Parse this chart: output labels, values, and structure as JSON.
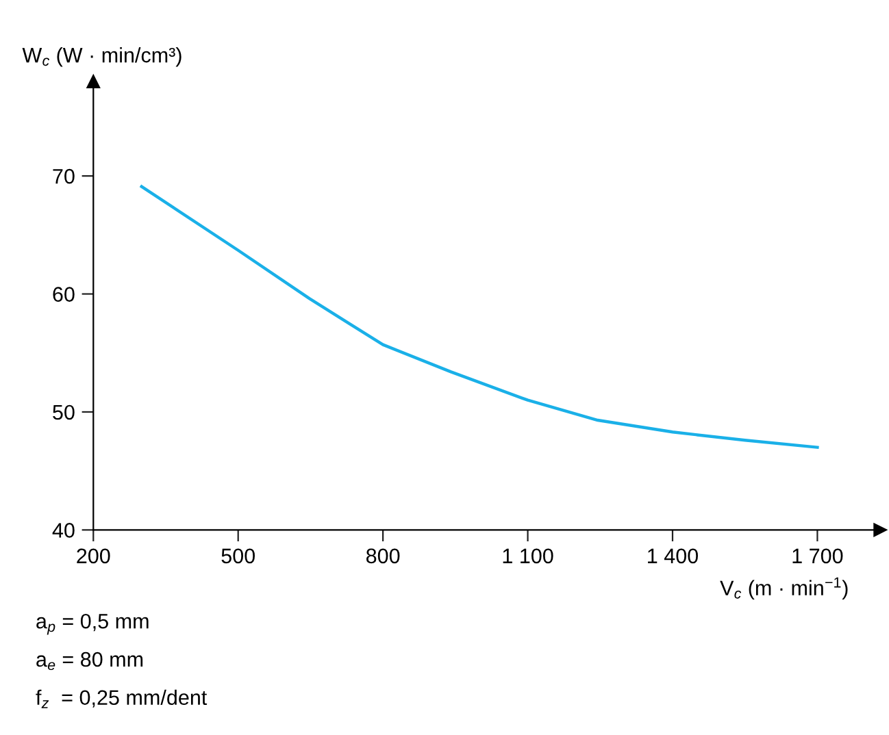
{
  "chart_data": {
    "type": "line",
    "xlabel": "V$_{c}$ (m · min$^{−1}$)",
    "ylabel": "W$_{c}$ (W · min/cm³)",
    "x": [
      300,
      500,
      648,
      800,
      941,
      1100,
      1245,
      1400,
      1550,
      1700
    ],
    "series": [
      {
        "color": "#1ab0e8",
        "values": [
          69.1,
          63.7,
          59.6,
          55.7,
          53.4,
          51.0,
          49.3,
          48.3,
          47.6,
          47.0
        ]
      }
    ],
    "xlim": [
      200,
      1830
    ],
    "ylim": [
      40,
      78
    ],
    "xticks": [
      200,
      500,
      800,
      {
        "value": 1100,
        "label": "1 100"
      },
      {
        "value": 1400,
        "label": "1 400"
      },
      {
        "value": 1700,
        "label": "1 700"
      }
    ],
    "yticks": [
      40,
      50,
      60,
      70
    ],
    "grid": false,
    "legend": false,
    "marker": "none",
    "line_style": "solid",
    "annotations": [
      "a$_{p}$ = 0,5 mm",
      "a$_{e}$ = 80 mm",
      "f$_{z}$  = 0,25 mm/dent"
    ]
  }
}
